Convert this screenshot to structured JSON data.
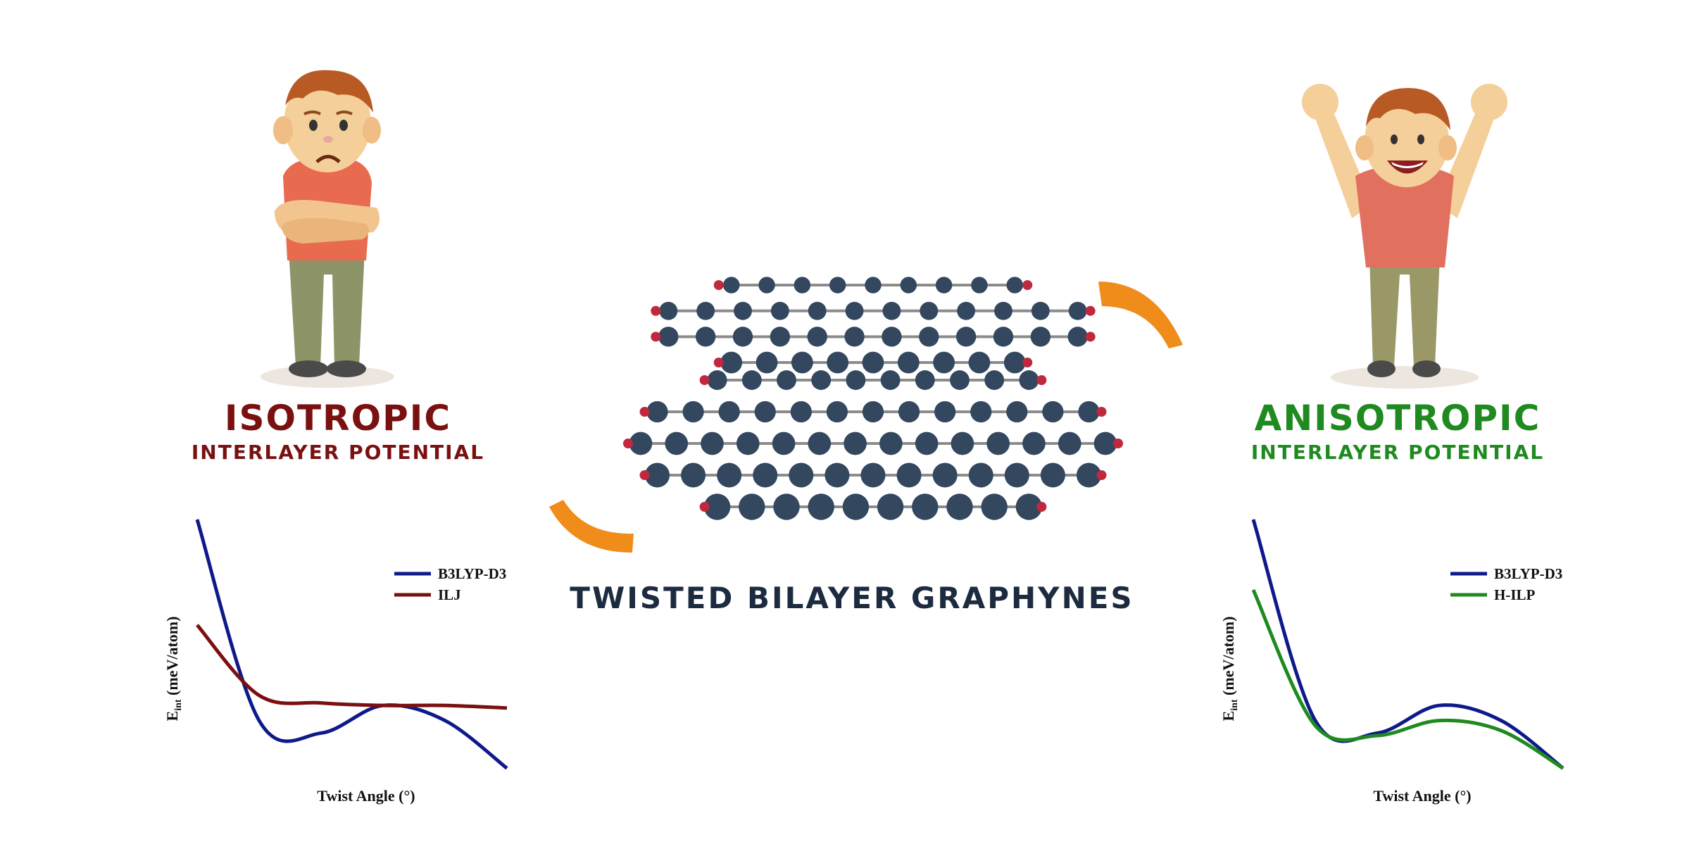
{
  "left_panel": {
    "title": "ISOTROPIC",
    "subtitle": "INTERLAYER POTENTIAL",
    "title_color": "#7a1010"
  },
  "right_panel": {
    "title": "ANISOTROPIC",
    "subtitle": "INTERLAYER POTENTIAL",
    "title_color": "#1f8a1f"
  },
  "center": {
    "caption": "TWISTED BILAYER GRAPHYNES",
    "caption_color": "#1c2b3f",
    "atom_color": "#33475f",
    "hydrogen_color": "#c0283e",
    "arrow_color": "#ef8c1a"
  },
  "chart_data": [
    {
      "type": "line",
      "xlabel": "Twist Angle (°)",
      "ylabel": "E_int (meV/atom)",
      "ylabel_main": "E",
      "ylabel_sub": "int",
      "ylabel_rest": " (meV/atom)",
      "series": [
        {
          "name": "B3LYP-D3",
          "color": "#0f1a8a",
          "values": [
            1.0,
            0.2,
            0.15,
            0.26,
            0.2,
            0.01
          ]
        },
        {
          "name": "ILJ",
          "color": "#7a1010",
          "values": [
            0.58,
            0.3,
            0.27,
            0.26,
            0.26,
            0.25
          ]
        }
      ]
    },
    {
      "type": "line",
      "xlabel": "Twist Angle (°)",
      "ylabel": "E_int (meV/atom)",
      "ylabel_main": "E",
      "ylabel_sub": "int",
      "ylabel_rest": " (meV/atom)",
      "series": [
        {
          "name": "B3LYP-D3",
          "color": "#0f1a8a",
          "values": [
            1.0,
            0.2,
            0.15,
            0.26,
            0.2,
            0.01
          ]
        },
        {
          "name": "H-ILP",
          "color": "#1f8a1f",
          "values": [
            0.72,
            0.18,
            0.14,
            0.2,
            0.16,
            0.01
          ]
        }
      ]
    }
  ]
}
